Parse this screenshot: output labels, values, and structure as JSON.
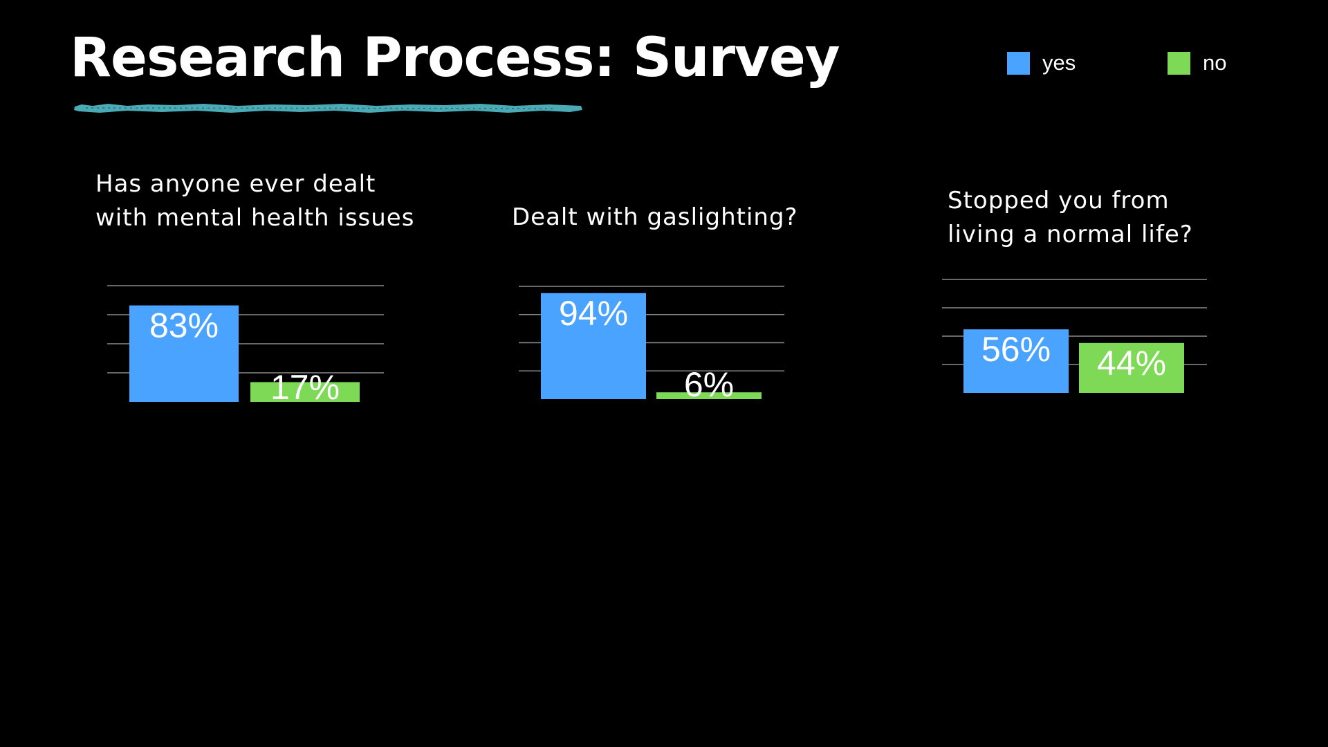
{
  "slide": {
    "title": "Research Process: Survey"
  },
  "legend": [
    {
      "label": "yes",
      "color": "#4aa3ff"
    },
    {
      "label": "no",
      "color": "#7ed957"
    }
  ],
  "colors": {
    "background": "#000000",
    "yes": "#4aa3ff",
    "no": "#7ed957",
    "underline": "#4aaab5",
    "gridline": "#8a8a8a"
  },
  "chart_data": [
    {
      "type": "bar",
      "title": "Has anyone ever dealt with mental health issues",
      "title_lines": [
        "Has anyone ever dealt",
        "with mental health issues"
      ],
      "categories": [
        "yes",
        "no"
      ],
      "values": [
        83,
        17
      ],
      "data_labels": [
        "83%",
        "17%"
      ],
      "ylim": [
        0,
        100
      ],
      "grid": true
    },
    {
      "type": "bar",
      "title": "Dealt with gaslighting?",
      "title_lines": [
        "Dealt with gaslighting?"
      ],
      "categories": [
        "yes",
        "no"
      ],
      "values": [
        94,
        6
      ],
      "data_labels": [
        "94%",
        "6%"
      ],
      "ylim": [
        0,
        100
      ],
      "grid": true
    },
    {
      "type": "bar",
      "title": "Stopped you from living a normal life?",
      "title_lines": [
        "Stopped you from",
        "living a normal life?"
      ],
      "categories": [
        "yes",
        "no"
      ],
      "values": [
        56,
        44
      ],
      "data_labels": [
        "56%",
        "44%"
      ],
      "ylim": [
        0,
        100
      ],
      "grid": true
    }
  ]
}
